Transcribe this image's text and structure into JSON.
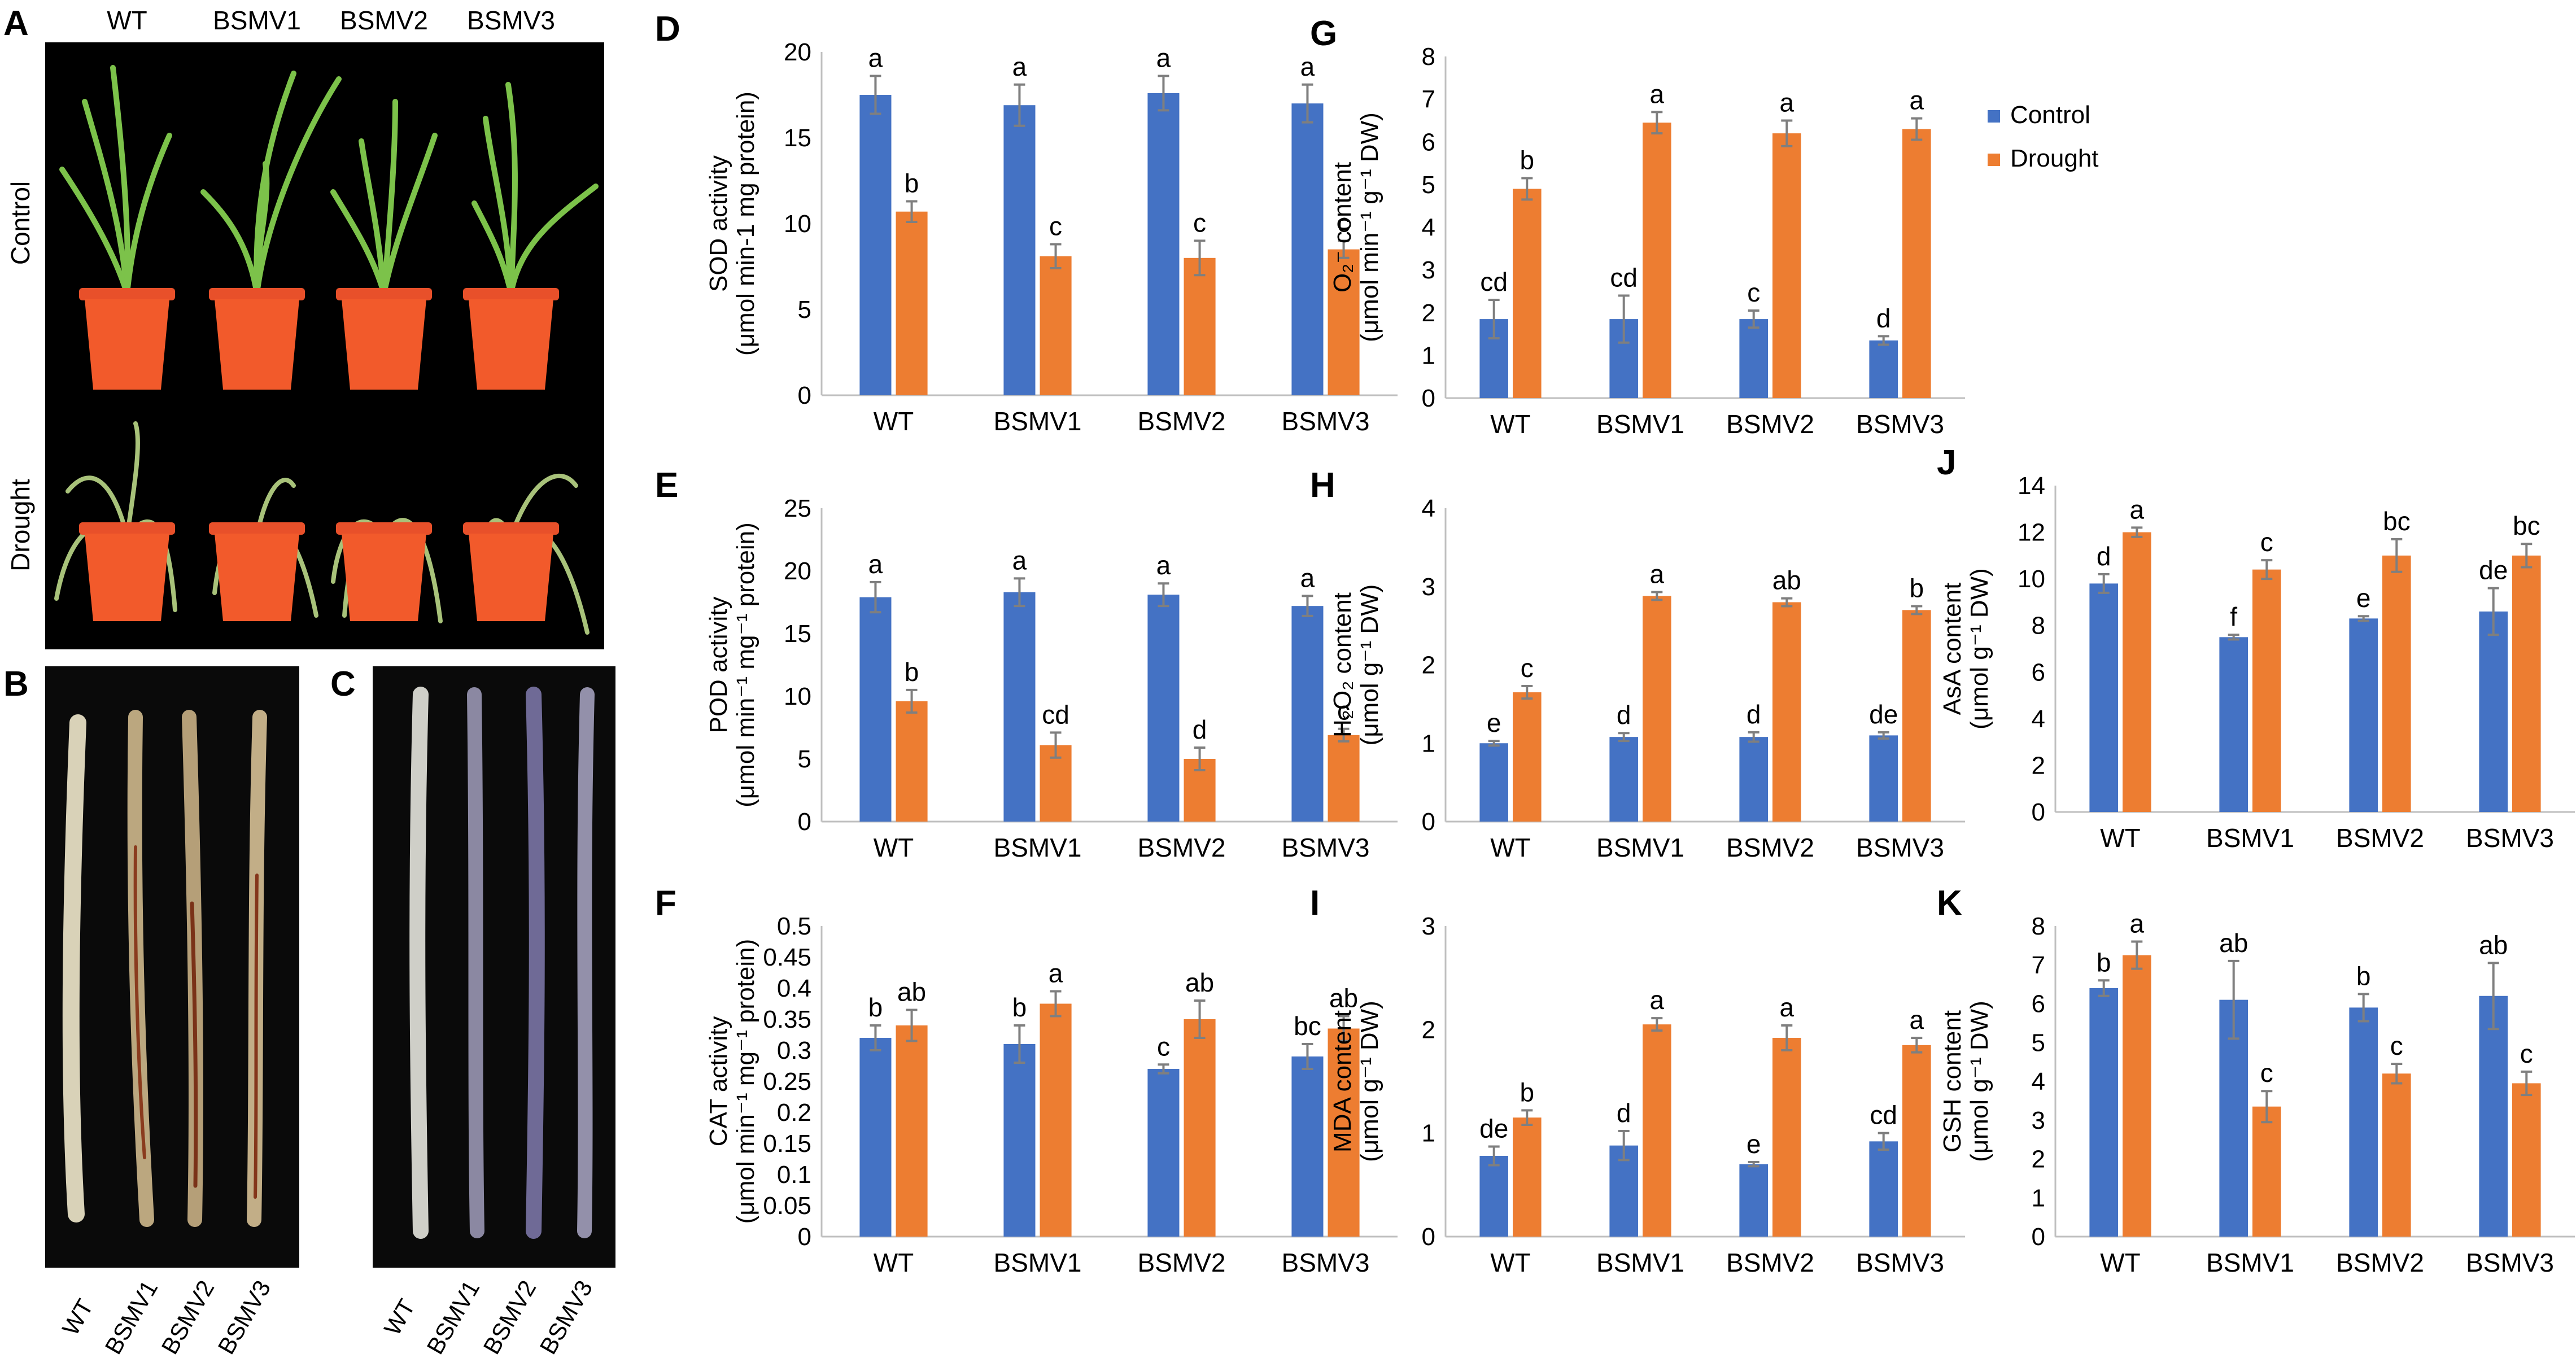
{
  "colors": {
    "control": "#4472C4",
    "drought": "#ED7D31",
    "error": "#7f7f7f",
    "axis": "#bfbfbf"
  },
  "legend": {
    "control": "Control",
    "drought": "Drought"
  },
  "photos": {
    "A": {
      "letter": "A",
      "columns": [
        "WT",
        "BSMV1",
        "BSMV2",
        "BSMV3"
      ],
      "rows": [
        "Control",
        "Drought"
      ]
    },
    "B": {
      "letter": "B",
      "labels": [
        "WT",
        "BSMV1",
        "BSMV2",
        "BSMV3"
      ]
    },
    "C": {
      "letter": "C",
      "labels": [
        "WT",
        "BSMV1",
        "BSMV2",
        "BSMV3"
      ]
    }
  },
  "chart_data": [
    {
      "id": "D",
      "type": "bar",
      "letter": "D",
      "ylabel_main": "SOD activity",
      "ylabel_unit": "(μmol min-1 mg protein)",
      "categories": [
        "WT",
        "BSMV1",
        "BSMV2",
        "BSMV3"
      ],
      "ylim": [
        0,
        20
      ],
      "ystep": 5,
      "series": [
        {
          "name": "Control",
          "values": [
            17.5,
            16.9,
            17.6,
            17.0
          ],
          "errors": [
            1.1,
            1.2,
            1.0,
            1.1
          ],
          "letters": [
            "a",
            "a",
            "a",
            "a"
          ]
        },
        {
          "name": "Drought",
          "values": [
            10.7,
            8.1,
            8.0,
            8.5
          ],
          "errors": [
            0.6,
            0.7,
            1.0,
            0.5
          ],
          "letters": [
            "b",
            "c",
            "c",
            "c"
          ]
        }
      ]
    },
    {
      "id": "E",
      "type": "bar",
      "letter": "E",
      "ylabel_main": "POD activity",
      "ylabel_unit": "(μmol min⁻¹ mg⁻¹ protein)",
      "categories": [
        "WT",
        "BSMV1",
        "BSMV2",
        "BSMV3"
      ],
      "ylim": [
        0,
        25
      ],
      "ystep": 5,
      "series": [
        {
          "name": "Control",
          "values": [
            17.9,
            18.3,
            18.1,
            17.2
          ],
          "errors": [
            1.2,
            1.1,
            0.9,
            0.8
          ],
          "letters": [
            "a",
            "a",
            "a",
            "a"
          ]
        },
        {
          "name": "Drought",
          "values": [
            9.6,
            6.1,
            5.0,
            6.9
          ],
          "errors": [
            0.9,
            1.0,
            0.9,
            0.5
          ],
          "letters": [
            "b",
            "cd",
            "d",
            "c"
          ]
        }
      ]
    },
    {
      "id": "F",
      "type": "bar",
      "letter": "F",
      "ylabel_main": "CAT activity",
      "ylabel_unit": "(μmol min⁻¹ mg⁻¹ protein)",
      "categories": [
        "WT",
        "BSMV1",
        "BSMV2",
        "BSMV3"
      ],
      "ylim": [
        0,
        0.5
      ],
      "ystep": 0.05,
      "decimals": 2,
      "series": [
        {
          "name": "Control",
          "values": [
            0.32,
            0.31,
            0.27,
            0.29
          ],
          "errors": [
            0.02,
            0.03,
            0.007,
            0.02
          ],
          "letters": [
            "b",
            "b",
            "c",
            "bc"
          ]
        },
        {
          "name": "Drought",
          "values": [
            0.34,
            0.375,
            0.35,
            0.335
          ],
          "errors": [
            0.025,
            0.02,
            0.03,
            0.02
          ],
          "letters": [
            "ab",
            "a",
            "ab",
            "ab"
          ]
        }
      ]
    },
    {
      "id": "G",
      "type": "bar",
      "letter": "G",
      "ylabel_main": "O₂⁻ content",
      "ylabel_unit": "(μmol min⁻¹ g⁻¹ DW)",
      "categories": [
        "WT",
        "BSMV1",
        "BSMV2",
        "BSMV3"
      ],
      "ylim": [
        0,
        8
      ],
      "ystep": 1,
      "series": [
        {
          "name": "Control",
          "values": [
            1.85,
            1.85,
            1.85,
            1.35
          ],
          "errors": [
            0.45,
            0.55,
            0.2,
            0.1
          ],
          "letters": [
            "cd",
            "cd",
            "c",
            "d"
          ]
        },
        {
          "name": "Drought",
          "values": [
            4.9,
            6.45,
            6.2,
            6.3
          ],
          "errors": [
            0.25,
            0.25,
            0.3,
            0.25
          ],
          "letters": [
            "b",
            "a",
            "a",
            "a"
          ]
        }
      ]
    },
    {
      "id": "H",
      "type": "bar",
      "letter": "H",
      "ylabel_main": "H₂O₂ content",
      "ylabel_unit": "(μmol g⁻¹ DW)",
      "categories": [
        "WT",
        "BSMV1",
        "BSMV2",
        "BSMV3"
      ],
      "ylim": [
        0,
        4
      ],
      "ystep": 1,
      "series": [
        {
          "name": "Control",
          "values": [
            1.0,
            1.08,
            1.08,
            1.1
          ],
          "errors": [
            0.03,
            0.05,
            0.06,
            0.04
          ],
          "letters": [
            "e",
            "d",
            "d",
            "de"
          ]
        },
        {
          "name": "Drought",
          "values": [
            1.65,
            2.88,
            2.8,
            2.7
          ],
          "errors": [
            0.08,
            0.05,
            0.05,
            0.05
          ],
          "letters": [
            "c",
            "a",
            "ab",
            "b"
          ]
        }
      ]
    },
    {
      "id": "I",
      "type": "bar",
      "letter": "I",
      "ylabel_main": "MDA content",
      "ylabel_unit": "(μmol g⁻¹ DW)",
      "categories": [
        "WT",
        "BSMV1",
        "BSMV2",
        "BSMV3"
      ],
      "ylim": [
        0,
        3
      ],
      "ystep": 1,
      "series": [
        {
          "name": "Control",
          "values": [
            0.78,
            0.88,
            0.7,
            0.92
          ],
          "errors": [
            0.09,
            0.14,
            0.02,
            0.08
          ],
          "letters": [
            "de",
            "d",
            "e",
            "cd"
          ]
        },
        {
          "name": "Drought",
          "values": [
            1.15,
            2.05,
            1.92,
            1.85
          ],
          "errors": [
            0.07,
            0.06,
            0.12,
            0.07
          ],
          "letters": [
            "b",
            "a",
            "a",
            "a"
          ]
        }
      ]
    },
    {
      "id": "J",
      "type": "bar",
      "letter": "J",
      "ylabel_main": "AsA content",
      "ylabel_unit": "(μmol g⁻¹ DW)",
      "categories": [
        "WT",
        "BSMV1",
        "BSMV2",
        "BSMV3"
      ],
      "ylim": [
        0,
        14
      ],
      "ystep": 2,
      "series": [
        {
          "name": "Control",
          "values": [
            9.8,
            7.5,
            8.3,
            8.6
          ],
          "errors": [
            0.4,
            0.1,
            0.1,
            1.0
          ],
          "letters": [
            "d",
            "f",
            "e",
            "de"
          ]
        },
        {
          "name": "Drought",
          "values": [
            12.0,
            10.4,
            11.0,
            11.0
          ],
          "errors": [
            0.2,
            0.4,
            0.7,
            0.5
          ],
          "letters": [
            "a",
            "c",
            "bc",
            "bc"
          ]
        }
      ]
    },
    {
      "id": "K",
      "type": "bar",
      "letter": "K",
      "ylabel_main": "GSH content",
      "ylabel_unit": "(μmol g⁻¹ DW)",
      "categories": [
        "WT",
        "BSMV1",
        "BSMV2",
        "BSMV3"
      ],
      "ylim": [
        0,
        8
      ],
      "ystep": 1,
      "series": [
        {
          "name": "Control",
          "values": [
            6.4,
            6.1,
            5.9,
            6.2
          ],
          "errors": [
            0.2,
            1.0,
            0.35,
            0.85
          ],
          "letters": [
            "b",
            "ab",
            "b",
            "ab"
          ]
        },
        {
          "name": "Drought",
          "values": [
            7.25,
            3.35,
            4.2,
            3.95
          ],
          "errors": [
            0.35,
            0.4,
            0.25,
            0.3
          ],
          "letters": [
            "a",
            "c",
            "c",
            "c"
          ]
        }
      ]
    }
  ]
}
